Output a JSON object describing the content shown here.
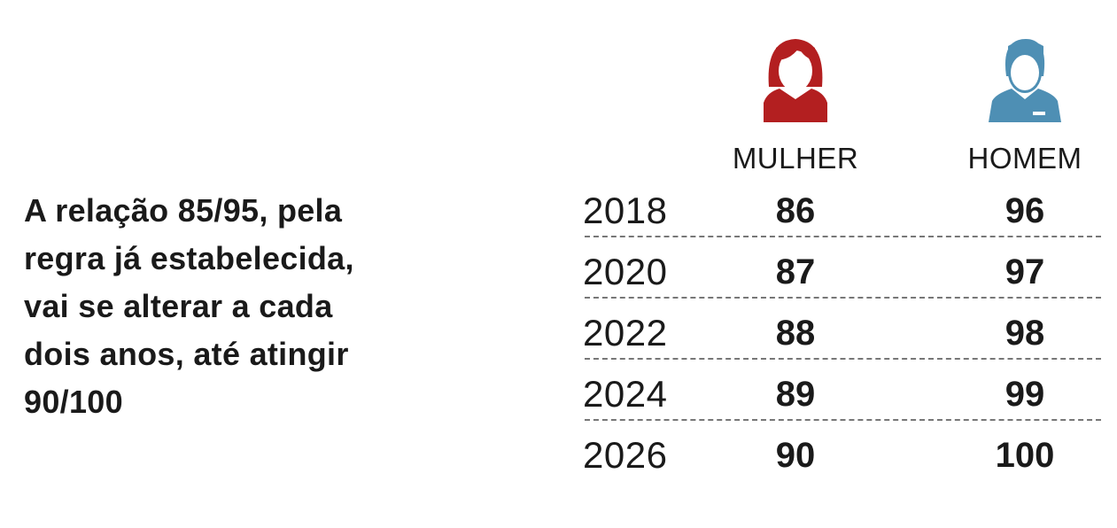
{
  "description": [
    "A relação 85/95, pela",
    "regra já estabelecida,",
    "vai se alterar a cada",
    "dois anos, até atingir",
    "90/100"
  ],
  "colors": {
    "mulher": "#b31f20",
    "homem": "#4e8fb4"
  },
  "chart_data": {
    "type": "table",
    "columns": [
      "MULHER",
      "HOMEM"
    ],
    "icons": [
      "woman-icon",
      "man-icon"
    ],
    "rows": [
      {
        "year": "2018",
        "mulher": "86",
        "homem": "96"
      },
      {
        "year": "2020",
        "mulher": "87",
        "homem": "97"
      },
      {
        "year": "2022",
        "mulher": "88",
        "homem": "98"
      },
      {
        "year": "2024",
        "mulher": "89",
        "homem": "99"
      },
      {
        "year": "2026",
        "mulher": "90",
        "homem": "100"
      }
    ]
  }
}
